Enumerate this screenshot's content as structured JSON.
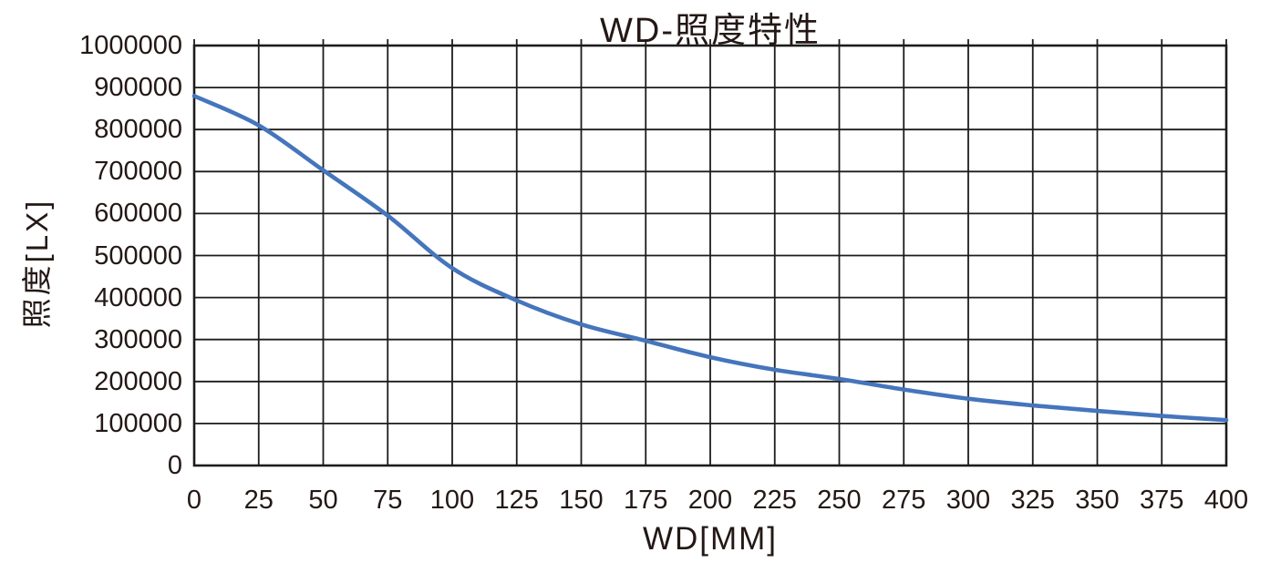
{
  "chart_data": {
    "type": "line",
    "title": "WD-照度特性",
    "xlabel": "WD[MM]",
    "ylabel": "照度[LX]",
    "x": [
      0,
      25,
      50,
      75,
      100,
      125,
      150,
      175,
      200,
      225,
      250,
      275,
      300,
      325,
      350,
      375,
      400
    ],
    "series": [
      {
        "name": "照度",
        "values": [
          880000,
          810000,
          703000,
          595000,
          470000,
          393000,
          336000,
          297000,
          258000,
          228000,
          206000,
          181000,
          159000,
          143000,
          130000,
          118000,
          108000
        ]
      }
    ],
    "xlim": [
      0,
      400
    ],
    "ylim": [
      0,
      1000000
    ],
    "xticks": [
      0,
      25,
      50,
      75,
      100,
      125,
      150,
      175,
      200,
      225,
      250,
      275,
      300,
      325,
      350,
      375,
      400
    ],
    "yticks": [
      0,
      100000,
      200000,
      300000,
      400000,
      500000,
      600000,
      700000,
      800000,
      900000,
      1000000
    ],
    "grid": "on",
    "legend": "none",
    "line_color": "#4575BC",
    "grid_color": "#1c1c1c",
    "text_color": "#231815",
    "background": "#ffffff"
  }
}
